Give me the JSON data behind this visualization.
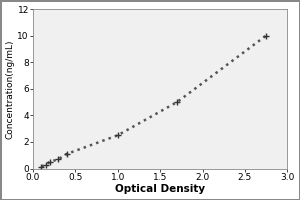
{
  "x_data": [
    0.1,
    0.15,
    0.2,
    0.3,
    0.4,
    1.0,
    1.7,
    2.75
  ],
  "y_data": [
    0.15,
    0.3,
    0.5,
    0.7,
    1.1,
    2.5,
    5.0,
    10.0
  ],
  "curve_color": "#555555",
  "marker": "+",
  "marker_size": 5,
  "marker_color": "#333333",
  "line_style": "dotted",
  "line_width": 1.8,
  "xlabel": "Optical Density",
  "ylabel": "Concentration(ng/mL)",
  "xlim": [
    0,
    3
  ],
  "ylim": [
    0,
    12
  ],
  "xticks": [
    0,
    0.5,
    1.0,
    1.5,
    2.0,
    2.5,
    3.0
  ],
  "yticks": [
    0,
    2,
    4,
    6,
    8,
    10,
    12
  ],
  "xlabel_fontsize": 7.5,
  "ylabel_fontsize": 6.5,
  "tick_fontsize": 6.5,
  "background_color": "#ffffff",
  "plot_bg_color": "#f0f0f0",
  "border_color": "#888888",
  "figure_border": true
}
